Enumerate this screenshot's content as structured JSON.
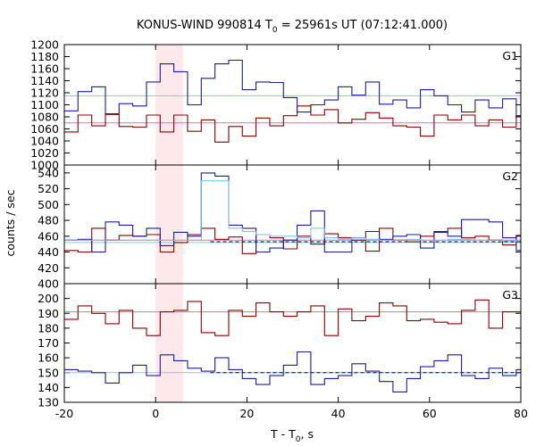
{
  "chart_data": {
    "type": "line",
    "title_prefix": "KONUS-WIND 990814 T",
    "title_sub": "0",
    "title_suffix": " = 25961s UT (07:12:41.000)",
    "xlabel_prefix": "T - T",
    "xlabel_sub": "0",
    "xlabel_suffix": ", s",
    "ylabel": "counts / sec",
    "xlim": [
      -20,
      80
    ],
    "xticks": [
      -20,
      0,
      20,
      40,
      60,
      80
    ],
    "highlight_interval": [
      0,
      6
    ],
    "colors": {
      "red_series": "#8b0000",
      "blue_series": "#1c1c9c",
      "blue_level": "#6fd3e8",
      "red_level": "#d86cd8",
      "zoom_series": "#7ab8f0",
      "highlight": "#fde8ec",
      "dashed": "#000066"
    },
    "panels": [
      {
        "label": "G1",
        "ylim": [
          1000,
          1200
        ],
        "yticks": [
          1000,
          1020,
          1040,
          1060,
          1080,
          1100,
          1120,
          1140,
          1160,
          1180,
          1200
        ],
        "red_level": 1070,
        "blue_level": 1115,
        "series": [
          {
            "key": "red",
            "x0": -20,
            "dx": 3,
            "values": [
              1055,
              1083,
              1065,
              1084,
              1064,
              1063,
              1083,
              1055,
              1083,
              1056,
              1075,
              1038,
              1064,
              1048,
              1078,
              1065,
              1082,
              1098,
              1083,
              1092,
              1070,
              1076,
              1087,
              1078,
              1065,
              1063,
              1048,
              1083,
              1075,
              1083,
              1065,
              1075,
              1063,
              1082
            ]
          },
          {
            "key": "blue",
            "x0": -20,
            "dx": 3,
            "values": [
              1090,
              1122,
              1130,
              1085,
              1102,
              1098,
              1138,
              1168,
              1155,
              1100,
              1144,
              1168,
              1174,
              1125,
              1138,
              1137,
              1112,
              1088,
              1100,
              1108,
              1130,
              1116,
              1138,
              1101,
              1108,
              1095,
              1125,
              1115,
              1100,
              1088,
              1108,
              1095,
              1110,
              1082
            ]
          }
        ]
      },
      {
        "label": "G2",
        "ylim": [
          400,
          550
        ],
        "yticks": [
          400,
          420,
          440,
          460,
          480,
          500,
          520,
          540
        ],
        "red_level": 455,
        "blue_level": 452,
        "dashed_level": 453,
        "series": [
          {
            "key": "red",
            "x0": -20,
            "dx": 3,
            "values": [
              442,
              440,
              470,
              455,
              461,
              460,
              462,
              440,
              452,
              462,
              470,
              456,
              459,
              438,
              462,
              458,
              444,
              460,
              450,
              463,
              458,
              455,
              441,
              470,
              455,
              453,
              460,
              466,
              470,
              458,
              460,
              455,
              449,
              461
            ]
          },
          {
            "key": "blue",
            "x0": -20,
            "dx": 3,
            "values": [
              455,
              456,
              440,
              478,
              474,
              460,
              470,
              448,
              465,
              460,
              540,
              536,
              474,
              470,
              440,
              445,
              455,
              474,
              492,
              440,
              440,
              458,
              466,
              456,
              460,
              462,
              445,
              465,
              460,
              481,
              481,
              478,
              458,
              442
            ]
          },
          {
            "key": "zoom",
            "x0": -20,
            "dx": 3,
            "values": [
              455,
              455,
              455,
              455,
              455,
              455,
              455,
              455,
              455,
              455,
              530,
              530,
              470,
              466,
              462,
              460,
              460,
              458,
              470,
              458,
              456,
              458,
              456,
              455,
              455,
              456,
              455,
              455,
              456,
              456,
              455,
              455,
              454,
              455
            ]
          }
        ]
      },
      {
        "label": "G3",
        "ylim": [
          130,
          210
        ],
        "yticks": [
          130,
          140,
          150,
          160,
          170,
          180,
          190,
          200
        ],
        "red_level": 191,
        "blue_level": 150,
        "dashed_level": 150,
        "series": [
          {
            "key": "red",
            "x0": -20,
            "dx": 3,
            "values": [
              186,
              195,
              190,
              183,
              192,
              180,
              175,
              191,
              192,
              198,
              177,
              175,
              192,
              188,
              197,
              191,
              188,
              191,
              195,
              175,
              193,
              185,
              188,
              197,
              195,
              185,
              186,
              184,
              183,
              192,
              199,
              180,
              191,
              191
            ]
          },
          {
            "key": "blue",
            "x0": -20,
            "dx": 3,
            "values": [
              152,
              151,
              150,
              143,
              150,
              155,
              148,
              162,
              158,
              153,
              151,
              160,
              152,
              146,
              142,
              148,
              155,
              164,
              142,
              146,
              148,
              156,
              151,
              144,
              137,
              146,
              154,
              158,
              162,
              148,
              146,
              153,
              148,
              152
            ]
          }
        ]
      }
    ]
  }
}
